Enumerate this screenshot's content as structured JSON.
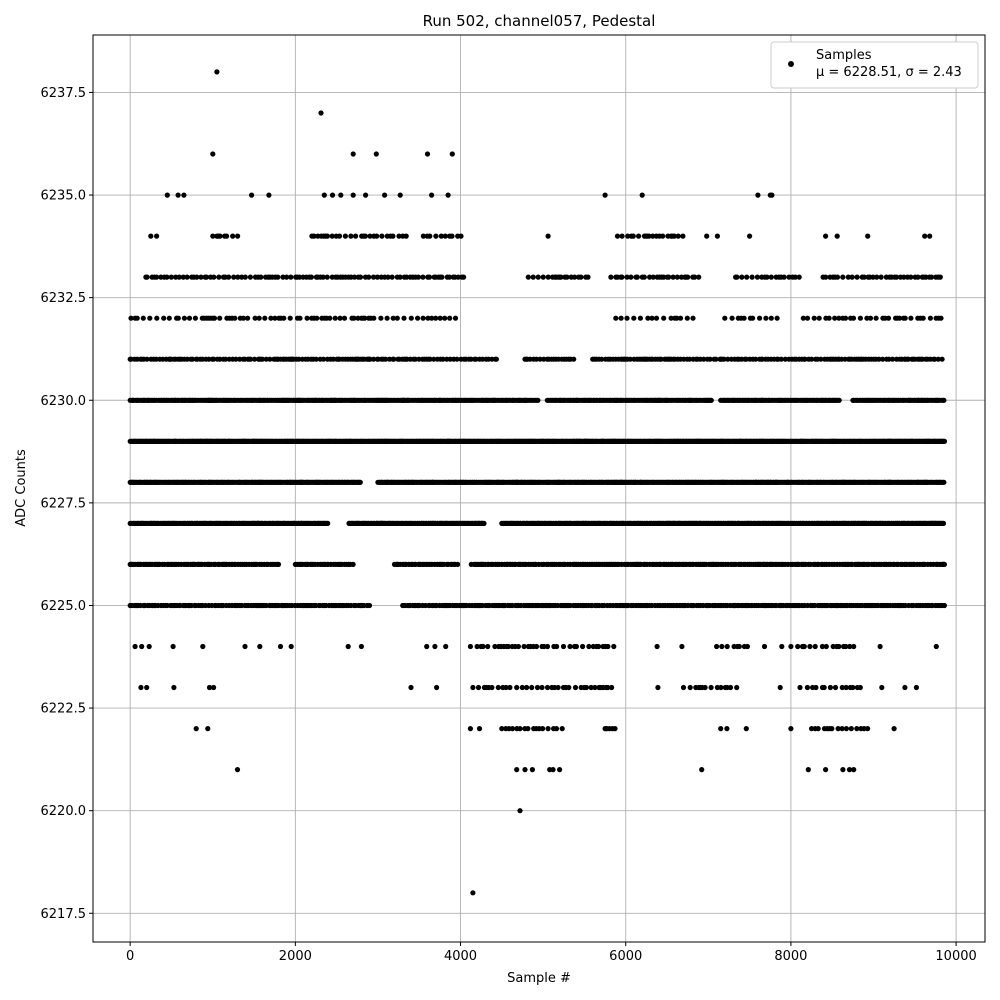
{
  "chart_data": {
    "type": "scatter",
    "title": "Run 502, channel057, Pedestal",
    "xlabel": "Sample #",
    "ylabel": "ADC Counts",
    "xlim": [
      -450,
      10350
    ],
    "ylim": [
      6216.8,
      6238.9
    ],
    "xticks": [
      0,
      2000,
      4000,
      6000,
      8000,
      10000
    ],
    "xtick_labels": [
      "0",
      "2000",
      "4000",
      "6000",
      "8000",
      "10000"
    ],
    "yticks": [
      6217.5,
      6220.0,
      6222.5,
      6225.0,
      6227.5,
      6230.0,
      6232.5,
      6235.0,
      6237.5
    ],
    "ytick_labels": [
      "6217.5",
      "6220.0",
      "6222.5",
      "6225.0",
      "6227.5",
      "6230.0",
      "6232.5",
      "6235.0",
      "6237.5"
    ],
    "grid": true,
    "legend_position": "top-right",
    "marker_color": "#000000",
    "series": [
      {
        "name": "Samples",
        "stats_label": "μ = 6228.51, σ = 2.43",
        "points": [
          [
            1050,
            6238
          ],
          [
            2310,
            6237
          ],
          [
            1000,
            6236
          ],
          [
            2700,
            6236
          ],
          [
            2980,
            6236
          ],
          [
            3600,
            6236
          ],
          [
            3900,
            6236
          ],
          [
            4150,
            6218
          ],
          [
            4720,
            6220
          ],
          [
            1300,
            6221
          ],
          [
            4680,
            6221
          ],
          [
            4780,
            6221
          ],
          [
            4870,
            6221
          ],
          [
            5080,
            6221
          ],
          [
            5120,
            6221
          ],
          [
            5200,
            6221
          ],
          [
            6920,
            6221
          ],
          [
            8210,
            6221
          ],
          [
            8420,
            6221
          ],
          [
            8630,
            6221
          ],
          [
            8710,
            6221
          ],
          [
            8760,
            6221
          ],
          [
            450,
            6235
          ],
          [
            580,
            6235
          ],
          [
            650,
            6235
          ],
          [
            1470,
            6235
          ],
          [
            1680,
            6235
          ],
          [
            2350,
            6235
          ],
          [
            2450,
            6235
          ],
          [
            2550,
            6235
          ],
          [
            2700,
            6235
          ],
          [
            2850,
            6235
          ],
          [
            3080,
            6235
          ],
          [
            3270,
            6235
          ],
          [
            3650,
            6235
          ],
          [
            3850,
            6235
          ],
          [
            5750,
            6235
          ],
          [
            6200,
            6235
          ],
          [
            7600,
            6235
          ],
          [
            7750,
            6235
          ],
          [
            7770,
            6235
          ],
          [
            250,
            6234
          ],
          [
            320,
            6234
          ],
          [
            5060,
            6234
          ],
          [
            6980,
            6234
          ],
          [
            7110,
            6234
          ],
          [
            7500,
            6234
          ],
          [
            8420,
            6234
          ],
          [
            8560,
            6234
          ],
          [
            8930,
            6234
          ],
          [
            9620,
            6234
          ],
          [
            9680,
            6234
          ],
          [
            800,
            6222
          ],
          [
            940,
            6222
          ],
          [
            4120,
            6222
          ],
          [
            4230,
            6222
          ],
          [
            5870,
            6222
          ],
          [
            7460,
            6222
          ],
          [
            8000,
            6222
          ],
          [
            9250,
            6222
          ],
          [
            130,
            6223
          ],
          [
            200,
            6223
          ],
          [
            530,
            6223
          ],
          [
            960,
            6223
          ],
          [
            1010,
            6223
          ],
          [
            3400,
            6223
          ],
          [
            3710,
            6223
          ],
          [
            6390,
            6223
          ],
          [
            7870,
            6223
          ],
          [
            8110,
            6223
          ],
          [
            9100,
            6223
          ],
          [
            9380,
            6223
          ],
          [
            9520,
            6223
          ],
          [
            60,
            6224
          ],
          [
            140,
            6224
          ],
          [
            230,
            6224
          ],
          [
            520,
            6224
          ],
          [
            880,
            6224
          ],
          [
            1390,
            6224
          ],
          [
            1570,
            6224
          ],
          [
            1820,
            6224
          ],
          [
            1950,
            6224
          ],
          [
            2640,
            6224
          ],
          [
            2800,
            6224
          ],
          [
            3590,
            6224
          ],
          [
            3690,
            6224
          ],
          [
            3820,
            6224
          ],
          [
            6380,
            6224
          ],
          [
            6680,
            6224
          ],
          [
            7680,
            6224
          ],
          [
            7890,
            6224
          ],
          [
            8150,
            6224
          ],
          [
            9080,
            6224
          ],
          [
            9760,
            6224
          ]
        ],
        "bands": [
          {
            "y": 6233,
            "x_ranges": [
              [
                190,
                4050
              ],
              [
                4820,
                5550
              ],
              [
                5820,
                6900
              ],
              [
                7330,
                8140
              ],
              [
                8390,
                9840
              ]
            ],
            "step": 40
          },
          {
            "y": 6232,
            "x_ranges": [
              [
                10,
                4000
              ],
              [
                5880,
                6850
              ],
              [
                7200,
                7870
              ],
              [
                8150,
                9840
              ]
            ],
            "step": 55
          },
          {
            "y": 6231,
            "x_ranges": [
              [
                0,
                4450
              ],
              [
                4780,
                5400
              ],
              [
                5600,
                9860
              ]
            ],
            "step": 30
          },
          {
            "y": 6230,
            "x_ranges": [
              [
                0,
                4950
              ],
              [
                5050,
                7050
              ],
              [
                7150,
                8600
              ],
              [
                8750,
                9860
              ]
            ],
            "step": 14
          },
          {
            "y": 6229,
            "x_ranges": [
              [
                0,
                9860
              ]
            ],
            "step": 8
          },
          {
            "y": 6228,
            "x_ranges": [
              [
                0,
                2800
              ],
              [
                3000,
                9860
              ]
            ],
            "step": 11
          },
          {
            "y": 6227,
            "x_ranges": [
              [
                0,
                2400
              ],
              [
                2650,
                4300
              ],
              [
                4500,
                9860
              ]
            ],
            "step": 14
          },
          {
            "y": 6226,
            "x_ranges": [
              [
                0,
                1800
              ],
              [
                2000,
                2700
              ],
              [
                3200,
                4000
              ],
              [
                4130,
                9860
              ]
            ],
            "step": 22
          },
          {
            "y": 6225,
            "x_ranges": [
              [
                0,
                2300
              ],
              [
                2300,
                2900
              ],
              [
                3300,
                4050
              ],
              [
                4050,
                9860
              ]
            ],
            "step": 24
          },
          {
            "y": 6234,
            "x_ranges": [
              [
                1000,
                1350
              ],
              [
                2200,
                3350
              ],
              [
                3550,
                4050
              ],
              [
                5900,
                6750
              ]
            ],
            "step": 45
          },
          {
            "y": 6224,
            "x_ranges": [
              [
                4120,
                5900
              ],
              [
                7100,
                7550
              ],
              [
                8000,
                8800
              ]
            ],
            "step": 55
          },
          {
            "y": 6223,
            "x_ranges": [
              [
                4150,
                5850
              ],
              [
                6700,
                7400
              ],
              [
                8200,
                8850
              ]
            ],
            "step": 50
          },
          {
            "y": 6222,
            "x_ranges": [
              [
                4500,
                5250
              ],
              [
                5750,
                5850
              ],
              [
                7150,
                7250
              ],
              [
                8250,
                8950
              ]
            ],
            "step": 50
          }
        ]
      }
    ]
  }
}
